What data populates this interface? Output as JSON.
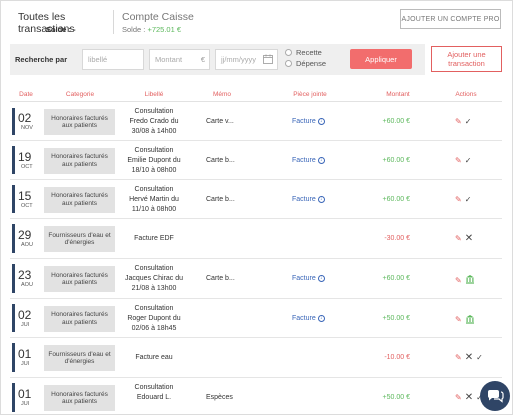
{
  "tabs": {
    "all": {
      "title": "Toutes les transactions",
      "balance_label": "Solde :",
      "balance_value": "-"
    },
    "cash": {
      "title": "Compte Caisse",
      "balance_label": "Solde :",
      "balance_value": "+725.01 €"
    }
  },
  "add_account_label": "AJOUTER UN COMPTE PRO",
  "filters": {
    "label": "Recherche par",
    "libelle_placeholder": "libellé",
    "montant_placeholder": "Montant",
    "montant_suffix": "€",
    "date_placeholder": "jj/mm/yyyy",
    "radio_recette": "Recette",
    "radio_depense": "Dépense",
    "apply_label": "Appliquer"
  },
  "add_transaction_label": "Ajouter une transaction",
  "columns": {
    "date": "Date",
    "categorie": "Categorie",
    "libelle": "Libellé",
    "memo": "Mémo",
    "piece": "Pièce jointe",
    "montant": "Montant",
    "actions": "Actions"
  },
  "rows": [
    {
      "day": "02",
      "month": "NOV",
      "category": "Honoraires facturés aux patients",
      "libelle": "Consultation Fredo Crado du 30/08 à 14h00",
      "memo": "Carte v...",
      "piece": "Facture",
      "amount": "+60.00 €",
      "sign": "pos",
      "actions": [
        "edit",
        "check"
      ]
    },
    {
      "day": "19",
      "month": "OCT",
      "category": "Honoraires facturés aux patients",
      "libelle": "Consultation Emilie Dupont du 18/10 à 08h00",
      "memo": "Carte b...",
      "piece": "Facture",
      "amount": "+60.00 €",
      "sign": "pos",
      "actions": [
        "edit",
        "check"
      ]
    },
    {
      "day": "15",
      "month": "OCT",
      "category": "Honoraires facturés aux patients",
      "libelle": "Consultation Hervé Martin du 11/10 à 08h00",
      "memo": "Carte b...",
      "piece": "Facture",
      "amount": "+60.00 €",
      "sign": "pos",
      "actions": [
        "edit",
        "check"
      ]
    },
    {
      "day": "29",
      "month": "AOU",
      "category": "Fournisseurs d'eau et d'énergies",
      "libelle": "Facture EDF",
      "memo": "",
      "piece": "",
      "amount": "-30.00 €",
      "sign": "neg",
      "actions": [
        "edit",
        "x"
      ]
    },
    {
      "day": "23",
      "month": "AOU",
      "category": "Honoraires facturés aux patients",
      "libelle": "Consultation Jacques Chirac du 21/08 à 13h00",
      "memo": "Carte b...",
      "piece": "Facture",
      "amount": "+60.00 €",
      "sign": "pos",
      "actions": [
        "edit",
        "bank"
      ]
    },
    {
      "day": "02",
      "month": "JUI",
      "category": "Honoraires facturés aux patients",
      "libelle": "Consultation Roger Dupont du 02/06 à 18h45",
      "memo": "",
      "piece": "Facture",
      "amount": "+50.00 €",
      "sign": "pos",
      "actions": [
        "edit",
        "bank"
      ]
    },
    {
      "day": "01",
      "month": "JUI",
      "category": "Fournisseurs d'eau et d'énergies",
      "libelle": "Facture eau",
      "memo": "",
      "piece": "",
      "amount": "-10.00 €",
      "sign": "neg",
      "actions": [
        "edit",
        "x",
        "check"
      ]
    },
    {
      "day": "01",
      "month": "JUI",
      "category": "Honoraires facturés aux patients",
      "libelle": "Consultation Edouard L.",
      "memo": "Espèces",
      "piece": "",
      "amount": "+50.00 €",
      "sign": "pos",
      "actions": [
        "edit",
        "x",
        "check"
      ]
    }
  ],
  "icons": {
    "edit": "pencil-icon",
    "check": "check-icon",
    "x": "close-icon",
    "bank": "bank-icon",
    "chat": "chat-icon"
  },
  "colors": {
    "accent": "#e26060",
    "apply_bg": "#f26d6d",
    "positive": "#5cb85c",
    "negative": "#e26060",
    "date_bar": "#2f4566",
    "link": "#3a66b8"
  }
}
